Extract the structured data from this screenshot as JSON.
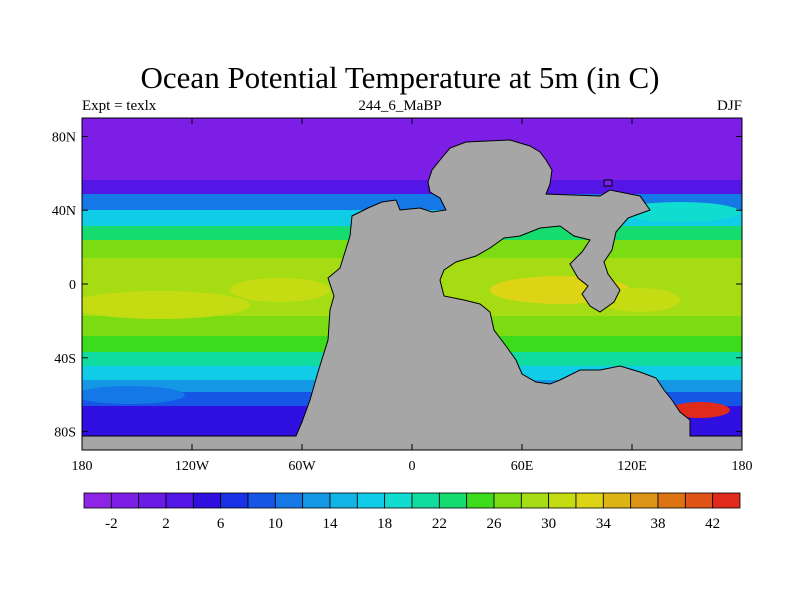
{
  "chart_data": {
    "type": "heatmap",
    "title": "Ocean Potential Temperature at 5m (in C)",
    "left_label": "Expt = texlx",
    "center_label": "244_6_MaBP",
    "right_label": "DJF",
    "x_tick_labels": [
      "180",
      "120W",
      "60W",
      "0",
      "60E",
      "120E",
      "180"
    ],
    "x_tick_values": [
      -180,
      -120,
      -60,
      0,
      60,
      120,
      180
    ],
    "y_tick_labels": [
      "80N",
      "40N",
      "0",
      "40S",
      "80S"
    ],
    "y_tick_values": [
      80,
      40,
      0,
      -40,
      -80
    ],
    "xlim": [
      -180,
      180
    ],
    "ylim": [
      -90,
      90
    ],
    "colorbar": {
      "levels": [
        -4,
        -2,
        0,
        2,
        4,
        6,
        8,
        10,
        12,
        14,
        16,
        18,
        20,
        22,
        24,
        26,
        28,
        30,
        32,
        34,
        36,
        38,
        40,
        42,
        44
      ],
      "tick_labels": [
        "-2",
        "2",
        "6",
        "10",
        "14",
        "18",
        "22",
        "26",
        "30",
        "34",
        "38",
        "42"
      ],
      "colors": [
        "#8e24e6",
        "#7d1ee6",
        "#6a1ce6",
        "#5316e6",
        "#2f10e0",
        "#1a32e6",
        "#1656e6",
        "#1478e6",
        "#1498e6",
        "#12b4e6",
        "#10cce6",
        "#10dcd0",
        "#10dca0",
        "#16dc70",
        "#3cdc1c",
        "#7cdc14",
        "#a6dc14",
        "#c6dc12",
        "#dcd414",
        "#dcb414",
        "#dc9414",
        "#dc7414",
        "#e05418",
        "#e02a1a"
      ]
    },
    "land_color": "#a6a6a6"
  }
}
